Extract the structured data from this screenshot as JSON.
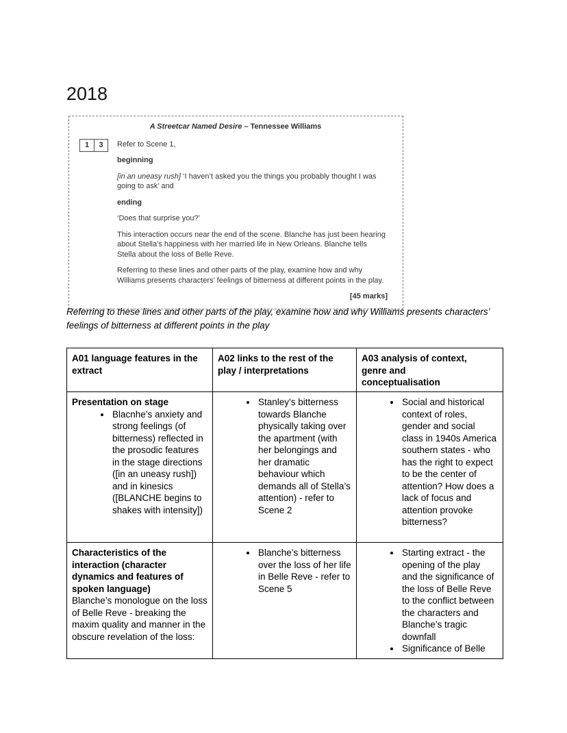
{
  "page": {
    "year_heading": "2018"
  },
  "exam_box": {
    "title_play": "A Streetcar Named Desire",
    "title_author": " – Tennessee Williams",
    "question_number": [
      "1",
      "3"
    ],
    "refer_line": "Refer to Scene 1,",
    "beginning_label": "beginning",
    "opening_stage_direction": "[in an uneasy rush]",
    "opening_quote_rest": " ‘I haven’t asked you the things you probably thought I was going to ask’ and",
    "ending_label": "ending",
    "closing_quote": "‘Does that surprise you?’",
    "context_paragraph": "This interaction occurs near the end of the scene.  Blanche has just been hearing about Stella’s happiness with her married life in New Orleans.  Blanche tells Stella about the loss of Belle Reve.",
    "task_paragraph": "Referring to these lines and other parts of the play, examine how and why Williams presents characters’ feelings of bitterness at different points in the play.",
    "marks": "[45 marks]"
  },
  "restated_question": "Referring to these lines and other parts of the play, examine how and why Williams presents characters’ feelings of bitterness at different points in the play",
  "table": {
    "headers": [
      "A01 language features in the extract",
      "A02 links to the rest of the play / interpretations",
      "A03 analysis of context, genre and conceptualisation"
    ],
    "rows": [
      {
        "cells": [
          {
            "heading": "Presentation on stage",
            "bullets": [
              "Blacnhe’s anxiety and strong feelings (of bitterness) reflected in the prosodic features in the stage directions ([in an uneasy rush]) and in kinesics ([BLANCHE begins to shakes with intensity])"
            ]
          },
          {
            "bullets": [
              "Stanley’s bitterness towards Blanche physically taking over the apartment (with her belongings and her dramatic behaviour which demands all of Stella’s attention) - refer to Scene 2"
            ]
          },
          {
            "bullets": [
              "Social and historical context of roles, gender and social class in 1940s America southern states - who has the right to expect to be the center of attention? How does a lack of focus and attention provoke bitterness?"
            ]
          }
        ]
      },
      {
        "cells": [
          {
            "heading": "Characteristics of the interaction (character dynamics and features of spoken language)",
            "text": "Blanche’s monologue on the loss of Belle Reve - breaking the maxim quality and manner in the obscure revelation of the loss:"
          },
          {
            "bullets": [
              "Blanche’s bitterness over the loss of her life in Belle Reve - refer to Scene 5"
            ]
          },
          {
            "bullets": [
              "Starting extract - the opening of the play and the significance of the loss of Belle Reve to the conflict between the characters and Blanche’s tragic downfall",
              "Significance of Belle"
            ]
          }
        ]
      }
    ]
  }
}
